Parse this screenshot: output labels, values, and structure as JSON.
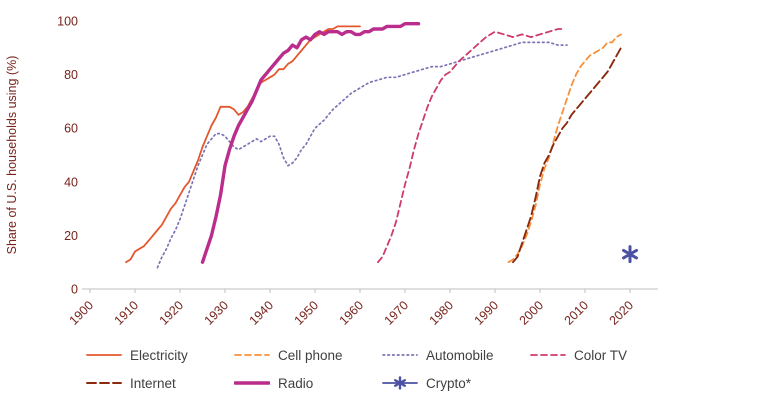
{
  "figure": {
    "background": "#ffffff"
  },
  "chart_data": {
    "type": "line",
    "title": "",
    "ylabel": "Share of U.S. households using (%)",
    "xlabel": "",
    "xlim": [
      1900,
      2020
    ],
    "ylim": [
      0,
      100
    ],
    "x_ticks": [
      1900,
      1910,
      1920,
      1930,
      1940,
      1950,
      1960,
      1970,
      1980,
      1990,
      2000,
      2010,
      2020
    ],
    "y_ticks": [
      0,
      20,
      40,
      60,
      80,
      100
    ],
    "grid": false,
    "legend_position": "bottom",
    "axis_text_color": "#77231c",
    "axis_line_color": "#bfbfbf",
    "legend_text_color": "#3f3f3f",
    "series": [
      {
        "name": "Electricity",
        "color": "#e4572e",
        "style": "solid",
        "width": 1.8,
        "points": [
          [
            1908,
            10
          ],
          [
            1909,
            11
          ],
          [
            1910,
            14
          ],
          [
            1911,
            15
          ],
          [
            1912,
            16
          ],
          [
            1913,
            18
          ],
          [
            1914,
            20
          ],
          [
            1915,
            22
          ],
          [
            1916,
            24
          ],
          [
            1917,
            27
          ],
          [
            1918,
            30
          ],
          [
            1919,
            32
          ],
          [
            1920,
            35
          ],
          [
            1921,
            38
          ],
          [
            1922,
            40
          ],
          [
            1923,
            44
          ],
          [
            1924,
            48
          ],
          [
            1925,
            53
          ],
          [
            1926,
            57
          ],
          [
            1927,
            61
          ],
          [
            1928,
            64
          ],
          [
            1929,
            68
          ],
          [
            1930,
            68
          ],
          [
            1931,
            68
          ],
          [
            1932,
            67
          ],
          [
            1933,
            65
          ],
          [
            1934,
            66
          ],
          [
            1935,
            68
          ],
          [
            1936,
            71
          ],
          [
            1937,
            74
          ],
          [
            1938,
            77
          ],
          [
            1939,
            78
          ],
          [
            1940,
            79
          ],
          [
            1941,
            80
          ],
          [
            1942,
            82
          ],
          [
            1943,
            82
          ],
          [
            1944,
            84
          ],
          [
            1945,
            85
          ],
          [
            1946,
            87
          ],
          [
            1947,
            89
          ],
          [
            1948,
            91
          ],
          [
            1949,
            93
          ],
          [
            1950,
            94
          ],
          [
            1951,
            95
          ],
          [
            1952,
            96
          ],
          [
            1953,
            97
          ],
          [
            1954,
            97
          ],
          [
            1955,
            98
          ],
          [
            1956,
            98
          ],
          [
            1957,
            98
          ],
          [
            1958,
            98
          ],
          [
            1959,
            98
          ],
          [
            1960,
            98
          ]
        ]
      },
      {
        "name": "Cell phone",
        "color": "#f5913e",
        "style": "dashed",
        "width": 1.8,
        "points": [
          [
            1993,
            10
          ],
          [
            1994,
            11
          ],
          [
            1995,
            13
          ],
          [
            1996,
            16
          ],
          [
            1997,
            20
          ],
          [
            1998,
            25
          ],
          [
            1999,
            31
          ],
          [
            2000,
            39
          ],
          [
            2001,
            45
          ],
          [
            2002,
            49
          ],
          [
            2003,
            55
          ],
          [
            2004,
            61
          ],
          [
            2005,
            66
          ],
          [
            2006,
            71
          ],
          [
            2007,
            76
          ],
          [
            2008,
            80
          ],
          [
            2009,
            83
          ],
          [
            2010,
            85
          ],
          [
            2011,
            87
          ],
          [
            2012,
            88
          ],
          [
            2013,
            89
          ],
          [
            2014,
            90
          ],
          [
            2015,
            92
          ],
          [
            2016,
            92
          ],
          [
            2017,
            94
          ],
          [
            2018,
            95
          ]
        ]
      },
      {
        "name": "Automobile",
        "color": "#7d72b4",
        "style": "dotted",
        "width": 1.7,
        "points": [
          [
            1915,
            8
          ],
          [
            1916,
            12
          ],
          [
            1917,
            15
          ],
          [
            1918,
            19
          ],
          [
            1919,
            22
          ],
          [
            1920,
            26
          ],
          [
            1921,
            31
          ],
          [
            1922,
            36
          ],
          [
            1923,
            41
          ],
          [
            1924,
            46
          ],
          [
            1925,
            50
          ],
          [
            1926,
            54
          ],
          [
            1927,
            56
          ],
          [
            1928,
            58
          ],
          [
            1929,
            58
          ],
          [
            1930,
            57
          ],
          [
            1931,
            55
          ],
          [
            1932,
            53
          ],
          [
            1933,
            52
          ],
          [
            1934,
            53
          ],
          [
            1935,
            54
          ],
          [
            1936,
            55
          ],
          [
            1937,
            56
          ],
          [
            1938,
            55
          ],
          [
            1939,
            56
          ],
          [
            1940,
            57
          ],
          [
            1941,
            57
          ],
          [
            1942,
            54
          ],
          [
            1943,
            49
          ],
          [
            1944,
            46
          ],
          [
            1945,
            47
          ],
          [
            1946,
            49
          ],
          [
            1947,
            52
          ],
          [
            1948,
            54
          ],
          [
            1949,
            57
          ],
          [
            1950,
            60
          ],
          [
            1952,
            63
          ],
          [
            1954,
            67
          ],
          [
            1956,
            70
          ],
          [
            1958,
            73
          ],
          [
            1960,
            75
          ],
          [
            1962,
            77
          ],
          [
            1964,
            78
          ],
          [
            1966,
            79
          ],
          [
            1968,
            79
          ],
          [
            1970,
            80
          ],
          [
            1972,
            81
          ],
          [
            1974,
            82
          ],
          [
            1976,
            83
          ],
          [
            1978,
            83
          ],
          [
            1980,
            84
          ],
          [
            1982,
            85
          ],
          [
            1984,
            86
          ],
          [
            1986,
            87
          ],
          [
            1988,
            88
          ],
          [
            1990,
            89
          ],
          [
            1992,
            90
          ],
          [
            1994,
            91
          ],
          [
            1996,
            92
          ],
          [
            1998,
            92
          ],
          [
            2000,
            92
          ],
          [
            2002,
            92
          ],
          [
            2004,
            91
          ],
          [
            2006,
            91
          ]
        ]
      },
      {
        "name": "Color TV",
        "color": "#cf3a6c",
        "style": "dashed",
        "width": 1.8,
        "points": [
          [
            1964,
            10
          ],
          [
            1965,
            12
          ],
          [
            1966,
            16
          ],
          [
            1967,
            20
          ],
          [
            1968,
            25
          ],
          [
            1969,
            32
          ],
          [
            1970,
            39
          ],
          [
            1971,
            45
          ],
          [
            1972,
            52
          ],
          [
            1973,
            58
          ],
          [
            1974,
            63
          ],
          [
            1975,
            68
          ],
          [
            1976,
            72
          ],
          [
            1977,
            75
          ],
          [
            1978,
            78
          ],
          [
            1979,
            80
          ],
          [
            1980,
            81
          ],
          [
            1982,
            85
          ],
          [
            1984,
            88
          ],
          [
            1986,
            91
          ],
          [
            1988,
            94
          ],
          [
            1990,
            96
          ],
          [
            1992,
            95
          ],
          [
            1994,
            94
          ],
          [
            1996,
            95
          ],
          [
            1998,
            94
          ],
          [
            2000,
            95
          ],
          [
            2002,
            96
          ],
          [
            2004,
            97
          ],
          [
            2005,
            97
          ]
        ]
      },
      {
        "name": "Internet",
        "color": "#8c2a0e",
        "style": "longdash",
        "width": 1.9,
        "points": [
          [
            1994,
            10
          ],
          [
            1995,
            12
          ],
          [
            1996,
            17
          ],
          [
            1997,
            22
          ],
          [
            1998,
            27
          ],
          [
            1999,
            34
          ],
          [
            2000,
            42
          ],
          [
            2001,
            47
          ],
          [
            2002,
            50
          ],
          [
            2003,
            54
          ],
          [
            2004,
            57
          ],
          [
            2005,
            60
          ],
          [
            2006,
            62
          ],
          [
            2007,
            65
          ],
          [
            2008,
            67
          ],
          [
            2009,
            69
          ],
          [
            2010,
            71
          ],
          [
            2011,
            73
          ],
          [
            2012,
            75
          ],
          [
            2013,
            77
          ],
          [
            2014,
            79
          ],
          [
            2015,
            81
          ],
          [
            2016,
            84
          ],
          [
            2017,
            87
          ],
          [
            2018,
            90
          ]
        ]
      },
      {
        "name": "Radio",
        "color": "#ba2d8c",
        "style": "solid",
        "width": 3.4,
        "points": [
          [
            1925,
            10
          ],
          [
            1926,
            15
          ],
          [
            1927,
            20
          ],
          [
            1928,
            27
          ],
          [
            1929,
            35
          ],
          [
            1930,
            46
          ],
          [
            1931,
            52
          ],
          [
            1932,
            57
          ],
          [
            1933,
            61
          ],
          [
            1934,
            64
          ],
          [
            1935,
            67
          ],
          [
            1936,
            70
          ],
          [
            1937,
            74
          ],
          [
            1938,
            78
          ],
          [
            1939,
            80
          ],
          [
            1940,
            82
          ],
          [
            1941,
            84
          ],
          [
            1942,
            86
          ],
          [
            1943,
            88
          ],
          [
            1944,
            89
          ],
          [
            1945,
            91
          ],
          [
            1946,
            90
          ],
          [
            1947,
            93
          ],
          [
            1948,
            94
          ],
          [
            1949,
            93
          ],
          [
            1950,
            95
          ],
          [
            1951,
            96
          ],
          [
            1952,
            95
          ],
          [
            1953,
            96
          ],
          [
            1954,
            96
          ],
          [
            1955,
            96
          ],
          [
            1956,
            95
          ],
          [
            1957,
            96
          ],
          [
            1958,
            96
          ],
          [
            1959,
            95
          ],
          [
            1960,
            95
          ],
          [
            1961,
            96
          ],
          [
            1962,
            96
          ],
          [
            1963,
            97
          ],
          [
            1964,
            97
          ],
          [
            1965,
            97
          ],
          [
            1966,
            98
          ],
          [
            1967,
            98
          ],
          [
            1968,
            98
          ],
          [
            1969,
            98
          ],
          [
            1970,
            99
          ],
          [
            1971,
            99
          ],
          [
            1972,
            99
          ],
          [
            1973,
            99
          ]
        ]
      },
      {
        "name": "Crypto*",
        "color": "#4c51a4",
        "style": "marker",
        "marker": "asterisk",
        "width": 3,
        "points": [
          [
            2020,
            13
          ]
        ]
      }
    ]
  }
}
